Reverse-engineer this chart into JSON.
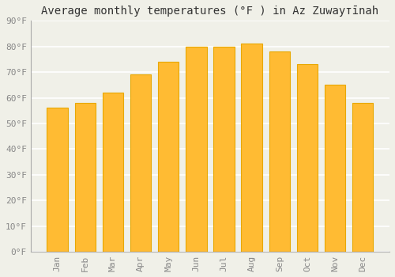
{
  "title": "Average monthly temperatures (°F ) in Az Zuwayтīnah",
  "months": [
    "Jan",
    "Feb",
    "Mar",
    "Apr",
    "May",
    "Jun",
    "Jul",
    "Aug",
    "Sep",
    "Oct",
    "Nov",
    "Dec"
  ],
  "values": [
    56,
    58,
    62,
    69,
    74,
    80,
    80,
    81,
    78,
    73,
    65,
    58
  ],
  "bar_color_face": "#FFBB33",
  "bar_color_edge": "#E8A800",
  "background_color": "#F0F0E8",
  "grid_color": "#FFFFFF",
  "ylim": [
    0,
    90
  ],
  "yticks": [
    0,
    10,
    20,
    30,
    40,
    50,
    60,
    70,
    80,
    90
  ],
  "ytick_labels": [
    "0°F",
    "10°F",
    "20°F",
    "30°F",
    "40°F",
    "50°F",
    "60°F",
    "70°F",
    "80°F",
    "90°F"
  ],
  "tick_fontsize": 8,
  "title_fontsize": 10,
  "tick_color": "#888888",
  "spine_color": "#AAAAAA"
}
